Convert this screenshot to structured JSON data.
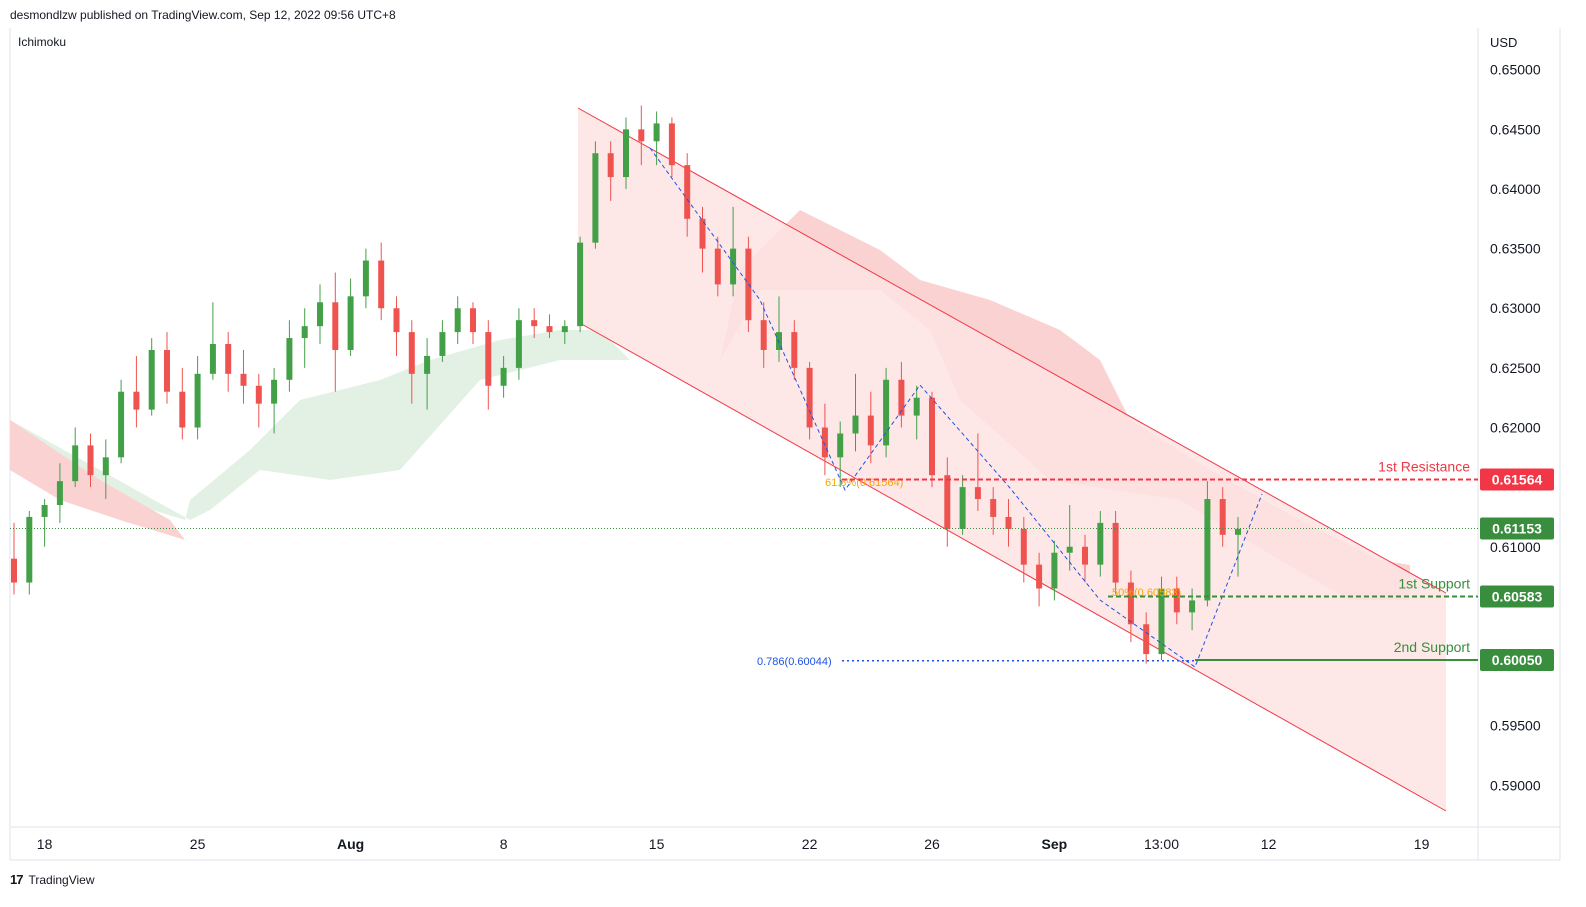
{
  "header": {
    "published": "desmondlzw published on TradingView.com, Sep 12, 2022 09:56 UTC+8",
    "indicator": "Ichimoku",
    "currency": "USD",
    "footer_brand": "TradingView",
    "footer_logo": "17"
  },
  "colors": {
    "up": "#43a047",
    "down": "#ef5350",
    "resistance": "#f23645",
    "support": "#388e3c",
    "channel_fill": "#fde3e3",
    "channel_line": "#f23645",
    "cloud_green": "#e3f1e4",
    "cloud_red": "#fbd2d2",
    "fib": "#1e53e5",
    "fib_label_orange": "#f7a600"
  },
  "chart_data": {
    "type": "candlestick",
    "y_axis": {
      "ticks": [
        "0.65000",
        "0.64500",
        "0.64000",
        "0.63500",
        "0.63000",
        "0.62500",
        "0.62000",
        "0.61000",
        "0.59500",
        "0.59000"
      ],
      "tick_values": [
        0.65,
        0.645,
        0.64,
        0.635,
        0.63,
        0.625,
        0.62,
        0.61,
        0.595,
        0.59
      ],
      "range": [
        0.5865,
        0.6535
      ]
    },
    "x_axis": {
      "ticks": [
        "18",
        "25",
        "Aug",
        "8",
        "15",
        "22",
        "26",
        "Sep",
        "13:00",
        "12",
        "19"
      ],
      "tick_index": [
        2,
        12,
        22,
        32,
        42,
        52,
        60,
        68,
        75,
        82,
        92
      ],
      "bold": [
        "Aug",
        "Sep"
      ]
    },
    "levels": [
      {
        "name": "1st Resistance",
        "value": 0.61564,
        "badge": "0.61564",
        "color": "#f23645",
        "style": "dashed"
      },
      {
        "name": "1st Support",
        "value": 0.60583,
        "badge": "0.60583",
        "color": "#388e3c",
        "style": "dashed"
      },
      {
        "name": "2nd Support",
        "value": 0.6005,
        "badge": "0.60050",
        "color": "#388e3c",
        "style": "solid"
      }
    ],
    "last_price": {
      "value": 0.61153,
      "badge": "0.61153"
    },
    "fib_labels": [
      {
        "text": "61.8%(0.61564)",
        "color": "#f7a600"
      },
      {
        "text": "50%(0.60583)",
        "color": "#f7a600"
      },
      {
        "text": "0.786(0.60044)",
        "color": "#1e53e5"
      }
    ],
    "candles": [
      [
        0.609,
        0.612,
        0.606,
        0.607
      ],
      [
        0.607,
        0.613,
        0.606,
        0.6125
      ],
      [
        0.6125,
        0.614,
        0.61,
        0.6135
      ],
      [
        0.6135,
        0.617,
        0.612,
        0.6155
      ],
      [
        0.6155,
        0.62,
        0.615,
        0.6185
      ],
      [
        0.6185,
        0.6195,
        0.615,
        0.616
      ],
      [
        0.616,
        0.619,
        0.614,
        0.6175
      ],
      [
        0.6175,
        0.624,
        0.617,
        0.623
      ],
      [
        0.623,
        0.626,
        0.62,
        0.6215
      ],
      [
        0.6215,
        0.6275,
        0.621,
        0.6265
      ],
      [
        0.6265,
        0.628,
        0.622,
        0.623
      ],
      [
        0.623,
        0.625,
        0.619,
        0.62
      ],
      [
        0.62,
        0.626,
        0.619,
        0.6245
      ],
      [
        0.6245,
        0.6305,
        0.624,
        0.627
      ],
      [
        0.627,
        0.628,
        0.623,
        0.6245
      ],
      [
        0.6245,
        0.6265,
        0.622,
        0.6235
      ],
      [
        0.6235,
        0.6245,
        0.62,
        0.622
      ],
      [
        0.622,
        0.625,
        0.6195,
        0.624
      ],
      [
        0.624,
        0.629,
        0.623,
        0.6275
      ],
      [
        0.6275,
        0.63,
        0.625,
        0.6285
      ],
      [
        0.6285,
        0.632,
        0.627,
        0.6305
      ],
      [
        0.6305,
        0.633,
        0.623,
        0.6265
      ],
      [
        0.6265,
        0.6325,
        0.626,
        0.631
      ],
      [
        0.631,
        0.635,
        0.63,
        0.634
      ],
      [
        0.634,
        0.6355,
        0.629,
        0.63
      ],
      [
        0.63,
        0.631,
        0.626,
        0.628
      ],
      [
        0.628,
        0.629,
        0.622,
        0.6245
      ],
      [
        0.6245,
        0.6275,
        0.6215,
        0.626
      ],
      [
        0.626,
        0.629,
        0.6255,
        0.628
      ],
      [
        0.628,
        0.631,
        0.627,
        0.63
      ],
      [
        0.63,
        0.6305,
        0.627,
        0.628
      ],
      [
        0.628,
        0.629,
        0.6215,
        0.6235
      ],
      [
        0.6235,
        0.626,
        0.6225,
        0.625
      ],
      [
        0.625,
        0.63,
        0.624,
        0.629
      ],
      [
        0.629,
        0.63,
        0.6275,
        0.6285
      ],
      [
        0.6285,
        0.6295,
        0.6275,
        0.628
      ],
      [
        0.628,
        0.629,
        0.627,
        0.6285
      ],
      [
        0.6285,
        0.636,
        0.628,
        0.6355
      ],
      [
        0.6355,
        0.644,
        0.635,
        0.643
      ],
      [
        0.643,
        0.644,
        0.639,
        0.641
      ],
      [
        0.641,
        0.646,
        0.64,
        0.645
      ],
      [
        0.645,
        0.647,
        0.642,
        0.644
      ],
      [
        0.644,
        0.6465,
        0.642,
        0.6455
      ],
      [
        0.6455,
        0.646,
        0.641,
        0.642
      ],
      [
        0.642,
        0.643,
        0.636,
        0.6375
      ],
      [
        0.6375,
        0.6385,
        0.633,
        0.635
      ],
      [
        0.635,
        0.636,
        0.631,
        0.632
      ],
      [
        0.632,
        0.6385,
        0.631,
        0.635
      ],
      [
        0.635,
        0.636,
        0.628,
        0.629
      ],
      [
        0.629,
        0.6305,
        0.625,
        0.6265
      ],
      [
        0.6265,
        0.631,
        0.6255,
        0.628
      ],
      [
        0.628,
        0.629,
        0.624,
        0.625
      ],
      [
        0.625,
        0.6255,
        0.619,
        0.62
      ],
      [
        0.62,
        0.622,
        0.616,
        0.6175
      ],
      [
        0.6175,
        0.6205,
        0.615,
        0.6195
      ],
      [
        0.6195,
        0.6245,
        0.618,
        0.621
      ],
      [
        0.621,
        0.623,
        0.617,
        0.6185
      ],
      [
        0.6185,
        0.625,
        0.6175,
        0.624
      ],
      [
        0.624,
        0.6255,
        0.62,
        0.621
      ],
      [
        0.621,
        0.6235,
        0.619,
        0.6225
      ],
      [
        0.6225,
        0.623,
        0.615,
        0.616
      ],
      [
        0.616,
        0.6175,
        0.61,
        0.6115
      ],
      [
        0.6115,
        0.616,
        0.611,
        0.615
      ],
      [
        0.615,
        0.6195,
        0.613,
        0.614
      ],
      [
        0.614,
        0.615,
        0.611,
        0.6125
      ],
      [
        0.6125,
        0.614,
        0.61,
        0.6115
      ],
      [
        0.6115,
        0.6125,
        0.607,
        0.6085
      ],
      [
        0.6085,
        0.6095,
        0.605,
        0.6065
      ],
      [
        0.6065,
        0.6105,
        0.6055,
        0.6095
      ],
      [
        0.6095,
        0.6135,
        0.608,
        0.61
      ],
      [
        0.61,
        0.611,
        0.607,
        0.6085
      ],
      [
        0.6085,
        0.613,
        0.6075,
        0.612
      ],
      [
        0.612,
        0.613,
        0.606,
        0.607
      ],
      [
        0.607,
        0.608,
        0.602,
        0.6035
      ],
      [
        0.6035,
        0.6045,
        0.6002,
        0.601
      ],
      [
        0.601,
        0.6075,
        0.6005,
        0.6065
      ],
      [
        0.6065,
        0.6075,
        0.6035,
        0.6045
      ],
      [
        0.6045,
        0.6065,
        0.603,
        0.6055
      ],
      [
        0.6055,
        0.6155,
        0.605,
        0.614
      ],
      [
        0.614,
        0.615,
        0.61,
        0.611
      ],
      [
        0.611,
        0.6125,
        0.6075,
        0.6115
      ]
    ]
  }
}
